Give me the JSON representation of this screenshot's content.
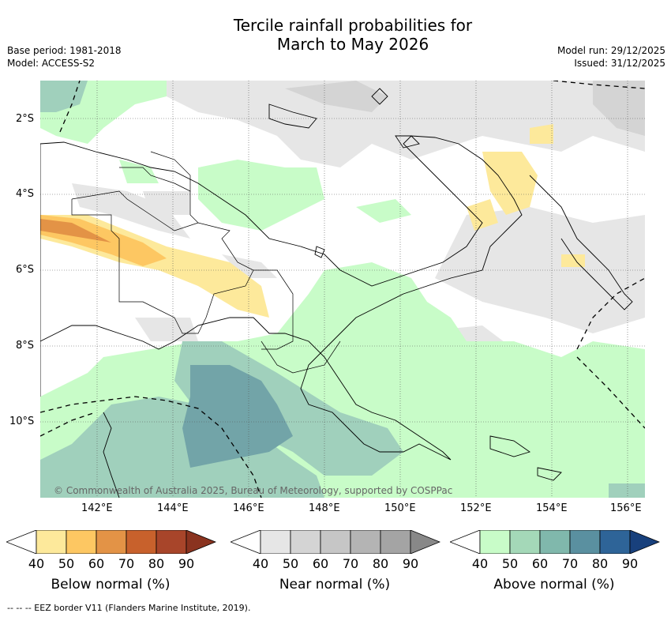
{
  "title": {
    "line1": "Tercile rainfall probabilities for",
    "line2": "March to May 2026"
  },
  "meta": {
    "base_period": "Base period: 1981-2018",
    "model": "Model: ACCESS-S2",
    "model_run": "Model run: 29/12/2025",
    "issued": "Issued: 31/12/2025"
  },
  "map": {
    "copyright": "© Commonwealth of Australia 2025, Bureau of Meteorology, supported by COSPPac",
    "lat_labels": [
      "2°S",
      "4°S",
      "6°S",
      "8°S",
      "10°S"
    ],
    "lon_labels": [
      "142°E",
      "144°E",
      "146°E",
      "148°E",
      "150°E",
      "152°E",
      "154°E",
      "156°E"
    ]
  },
  "legends": [
    {
      "name": "Below normal (%)",
      "ticks": [
        "40",
        "50",
        "60",
        "70",
        "80",
        "90"
      ],
      "colors": [
        "#ffffff",
        "#fde99b",
        "#fdc762",
        "#e39346",
        "#c8612c",
        "#a8452a",
        "#8a331f"
      ]
    },
    {
      "name": "Near normal (%)",
      "ticks": [
        "40",
        "50",
        "60",
        "70",
        "80",
        "90"
      ],
      "colors": [
        "#ffffff",
        "#e6e6e6",
        "#d4d4d4",
        "#c6c6c6",
        "#b4b4b4",
        "#a4a4a4",
        "#888888"
      ]
    },
    {
      "name": "Above normal (%)",
      "ticks": [
        "40",
        "50",
        "60",
        "70",
        "80",
        "90"
      ],
      "colors": [
        "#ffffff",
        "#c8fcc8",
        "#a4d8b8",
        "#80b8ac",
        "#5a90a0",
        "#2e6498",
        "#18407c"
      ]
    }
  ],
  "colors": {
    "above50": "#c8fcc8",
    "above60": "#a0d0bc",
    "above70": "#72a4a8",
    "near50": "#e6e6e6",
    "near60": "#d4d4d4",
    "below50": "#fde99b",
    "below60": "#fdc762",
    "below70": "#e39346",
    "below80": "#c8612c"
  },
  "footnote": "-- -- -- EEZ border V11 (Flanders Marine Institute, 2019)."
}
